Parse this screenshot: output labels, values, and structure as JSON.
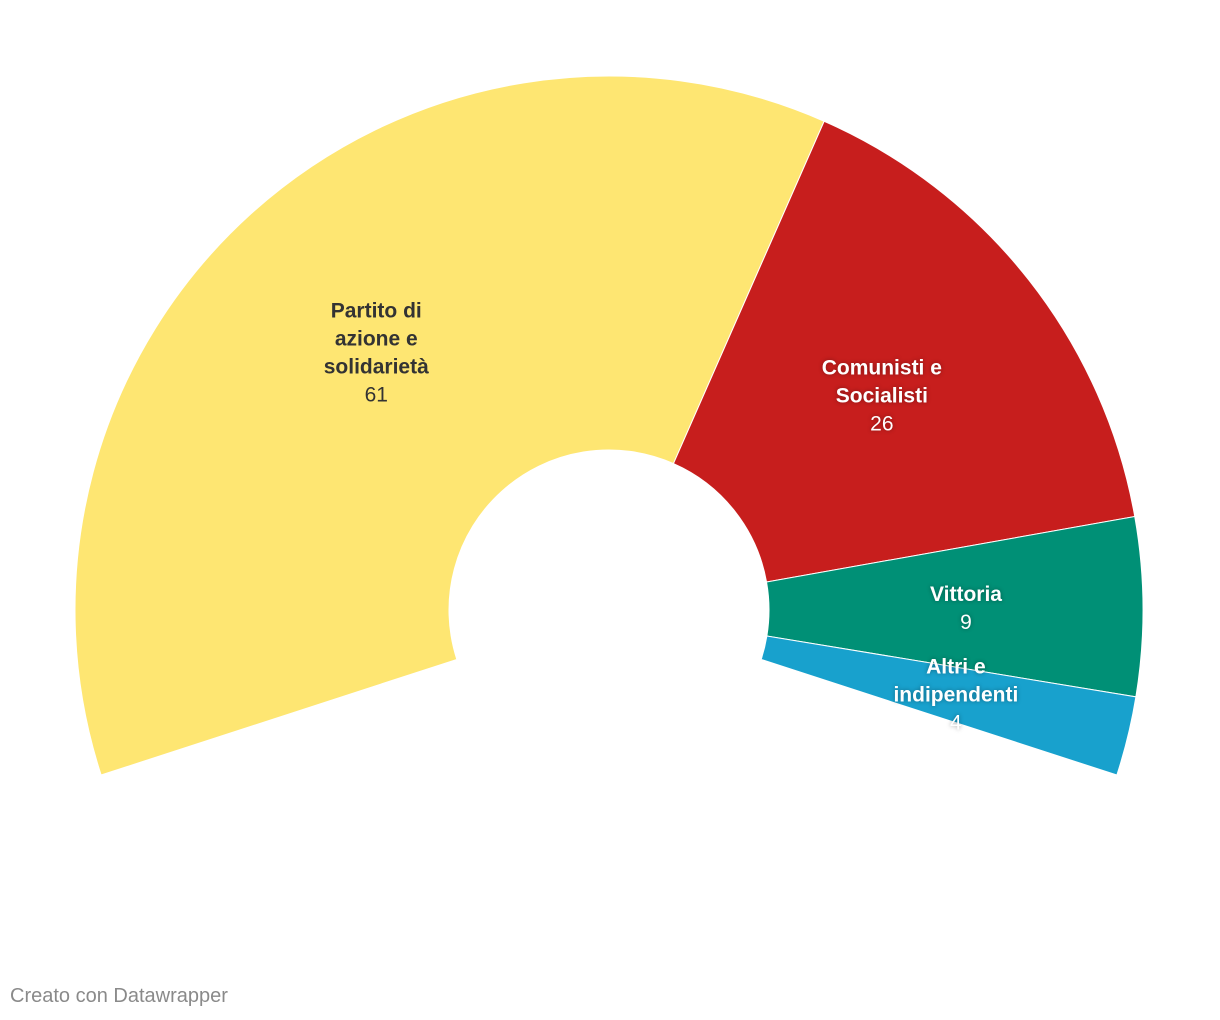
{
  "chart_data": {
    "type": "pie",
    "variant": "half-donut (parliament)",
    "total": 100,
    "series": [
      {
        "name": "Partito di azione e solidarietà",
        "lines": [
          "Partito di",
          "azione e",
          "solidarietà"
        ],
        "value": 61,
        "color": "#fee672",
        "text_color": "#333333"
      },
      {
        "name": "Comunisti e Socialisti",
        "lines": [
          "Comunisti e",
          "Socialisti"
        ],
        "value": 26,
        "color": "#c71e1d",
        "text_color": "#ffffff"
      },
      {
        "name": "Vittoria",
        "lines": [
          "Vittoria"
        ],
        "value": 9,
        "color": "#009076",
        "text_color": "#ffffff"
      },
      {
        "name": "Altri e indipendenti",
        "lines": [
          "Altri e",
          "indipendenti"
        ],
        "value": 4,
        "color": "#18a1cd",
        "text_color": "#ffffff"
      }
    ]
  },
  "footer": {
    "credit": "Creato con Datawrapper"
  }
}
